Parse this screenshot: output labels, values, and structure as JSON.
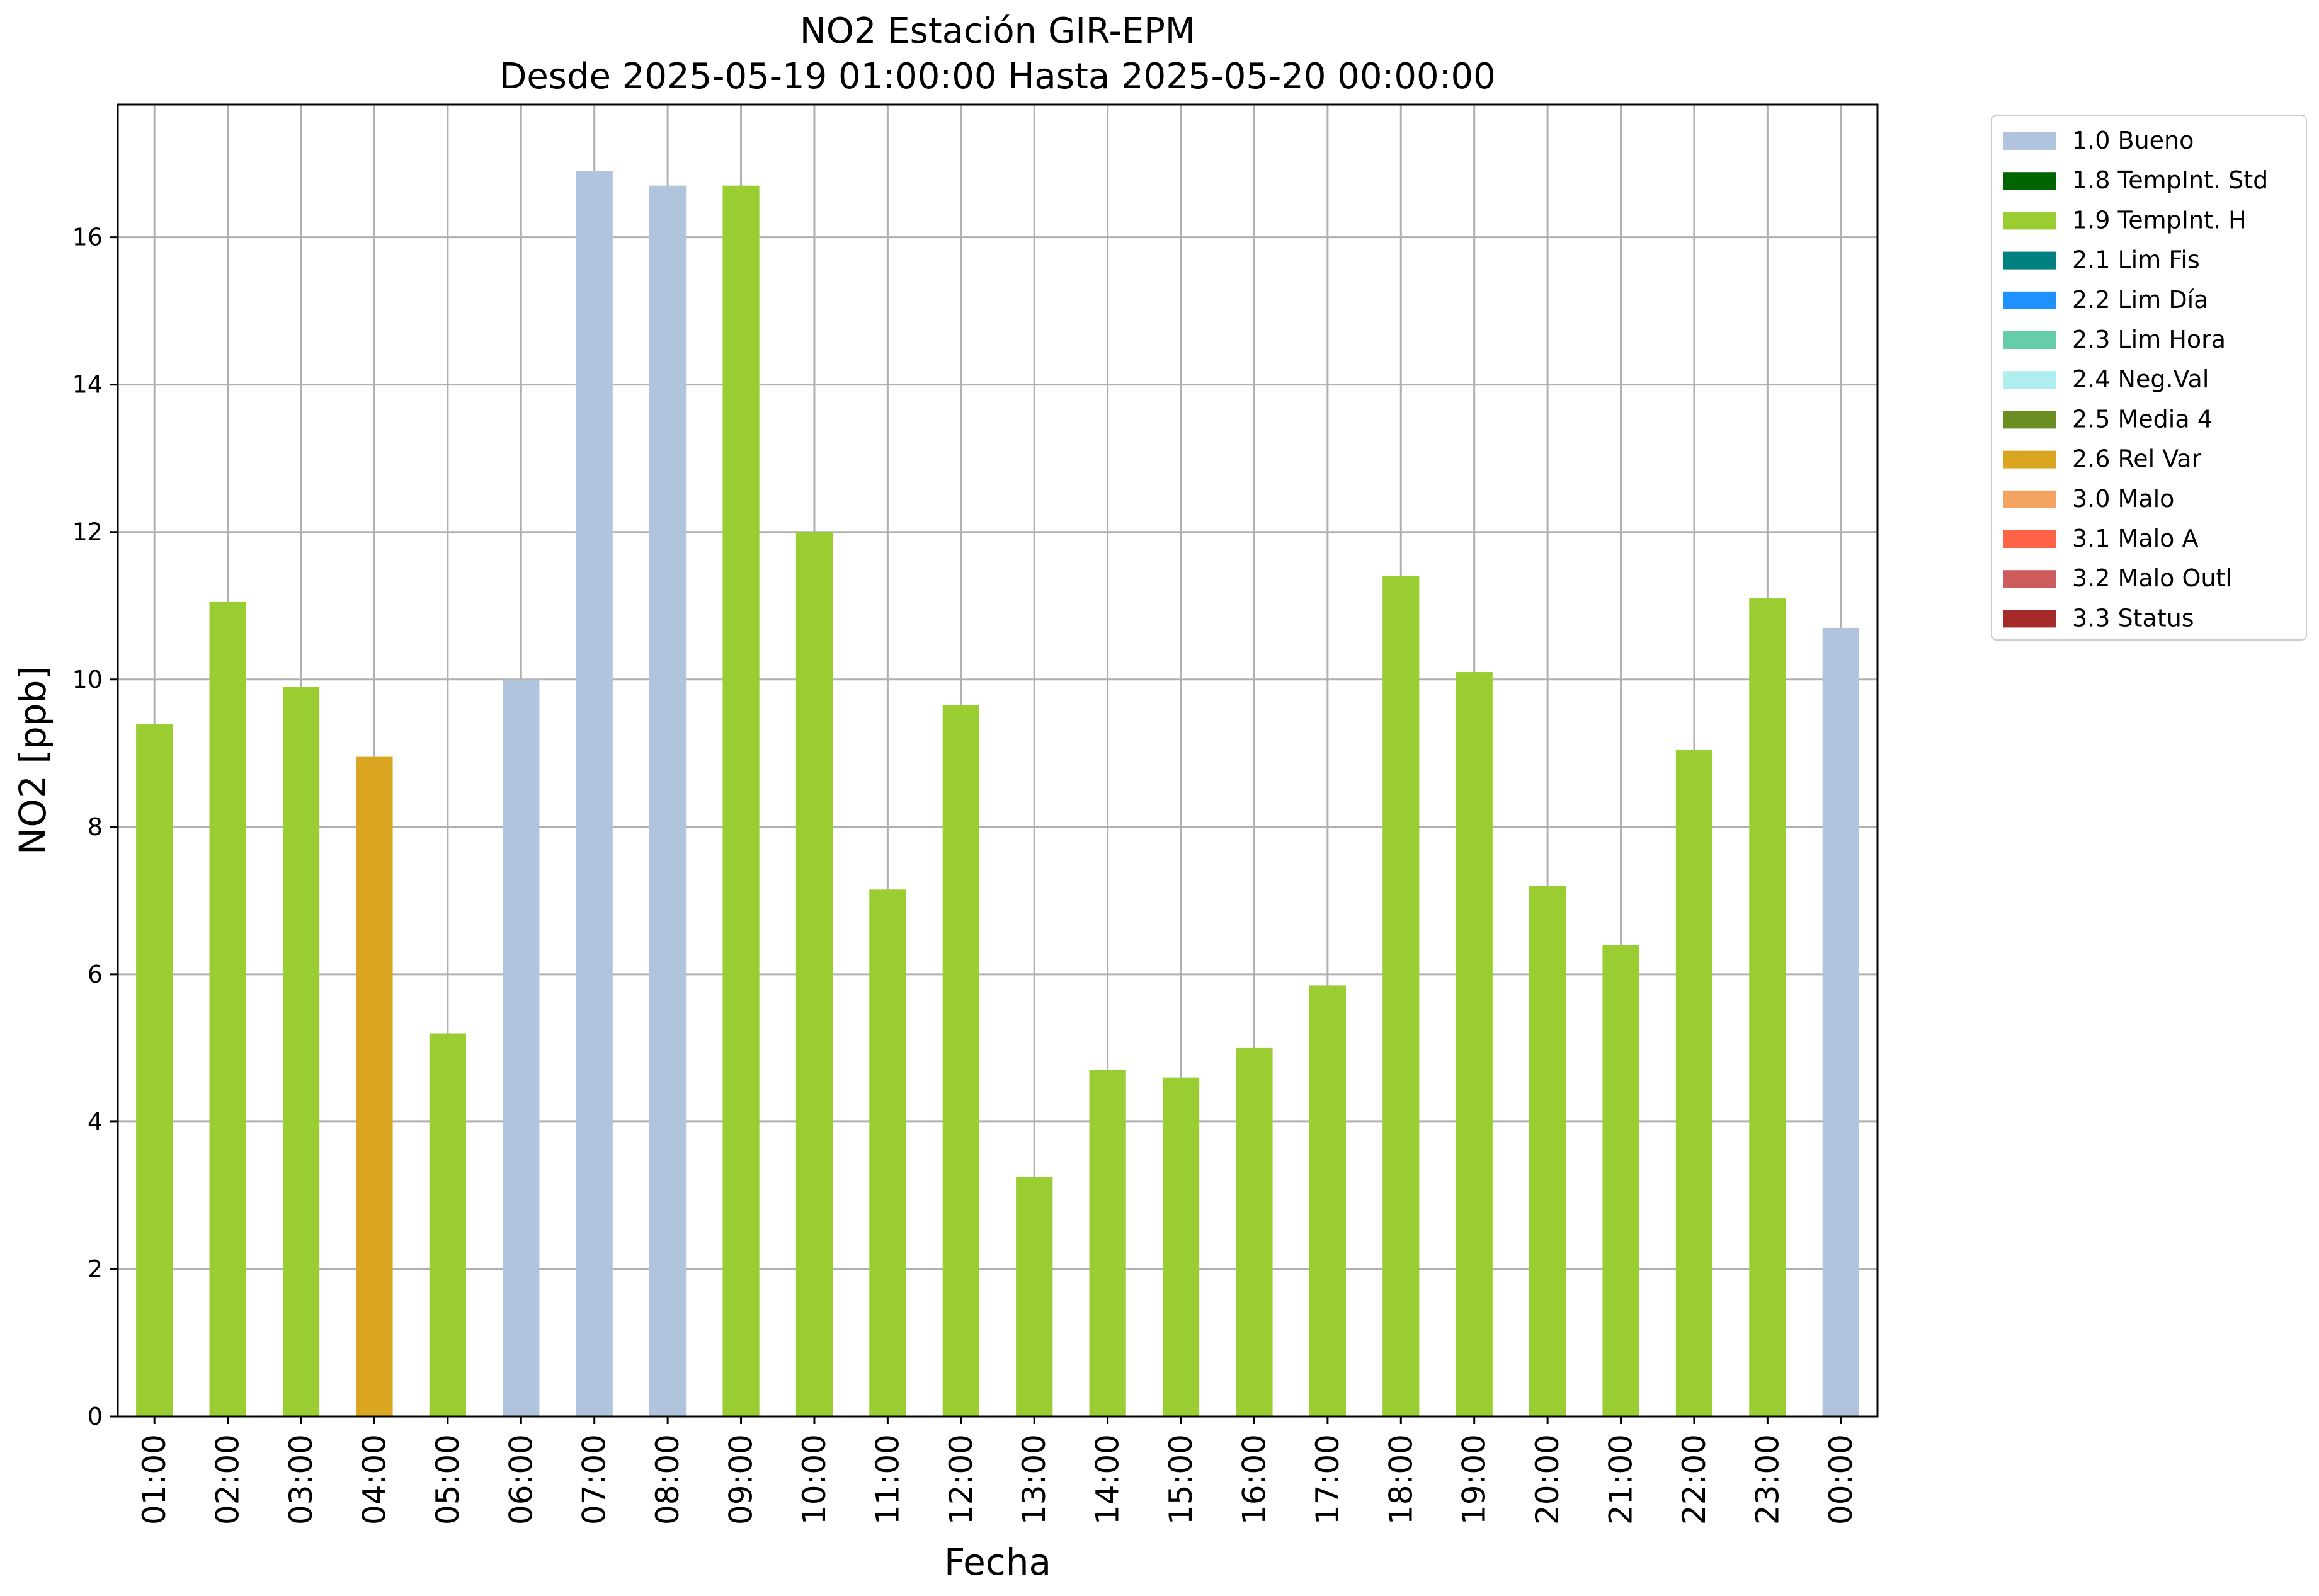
{
  "chart_data": {
    "type": "bar",
    "title": "NO2 Estación GIR-EPM",
    "subtitle": "Desde 2025-05-19 01:00:00 Hasta 2025-05-20 00:00:00",
    "xlabel": "Fecha",
    "ylabel": "NO2 [ppb]",
    "ylim": [
      0,
      17.8
    ],
    "yticks": [
      0,
      2,
      4,
      6,
      8,
      10,
      12,
      14,
      16
    ],
    "grid": true,
    "legend_position": "outside-top-right",
    "categories": [
      "01:00",
      "02:00",
      "03:00",
      "04:00",
      "05:00",
      "06:00",
      "07:00",
      "08:00",
      "09:00",
      "10:00",
      "11:00",
      "12:00",
      "13:00",
      "14:00",
      "15:00",
      "16:00",
      "17:00",
      "18:00",
      "19:00",
      "20:00",
      "21:00",
      "22:00",
      "23:00",
      "00:00"
    ],
    "values": [
      9.4,
      11.05,
      9.9,
      8.95,
      5.2,
      10.0,
      16.9,
      16.7,
      16.7,
      12.0,
      7.15,
      9.65,
      3.25,
      4.7,
      4.6,
      5.0,
      5.85,
      11.4,
      10.1,
      7.2,
      6.4,
      9.05,
      11.1,
      10.7
    ],
    "flags": [
      "1.9",
      "1.9",
      "1.9",
      "2.6",
      "1.9",
      "1.0",
      "1.0",
      "1.0",
      "1.9",
      "1.9",
      "1.9",
      "1.9",
      "1.9",
      "1.9",
      "1.9",
      "1.9",
      "1.9",
      "1.9",
      "1.9",
      "1.9",
      "1.9",
      "1.9",
      "1.9",
      "1.0"
    ],
    "legend": [
      {
        "code": "1.0",
        "label": "1.0 Bueno",
        "color": "#b0c4de"
      },
      {
        "code": "1.8",
        "label": "1.8 TempInt. Std",
        "color": "#006400"
      },
      {
        "code": "1.9",
        "label": "1.9 TempInt. H",
        "color": "#9acd32"
      },
      {
        "code": "2.1",
        "label": "2.1 Lim Fis",
        "color": "#008080"
      },
      {
        "code": "2.2",
        "label": "2.2 Lim Día",
        "color": "#1e90ff"
      },
      {
        "code": "2.3",
        "label": "2.3 Lim Hora",
        "color": "#66cdaa"
      },
      {
        "code": "2.4",
        "label": "2.4 Neg.Val",
        "color": "#afeeee"
      },
      {
        "code": "2.5",
        "label": "2.5 Media 4",
        "color": "#6b8e23"
      },
      {
        "code": "2.6",
        "label": "2.6 Rel Var",
        "color": "#daa520"
      },
      {
        "code": "3.0",
        "label": "3.0 Malo",
        "color": "#f4a460"
      },
      {
        "code": "3.1",
        "label": "3.1 Malo A",
        "color": "#ff6347"
      },
      {
        "code": "3.2",
        "label": "3.2 Malo Outl",
        "color": "#cd5c5c"
      },
      {
        "code": "3.3",
        "label": "3.3 Status",
        "color": "#a52a2a"
      }
    ]
  }
}
